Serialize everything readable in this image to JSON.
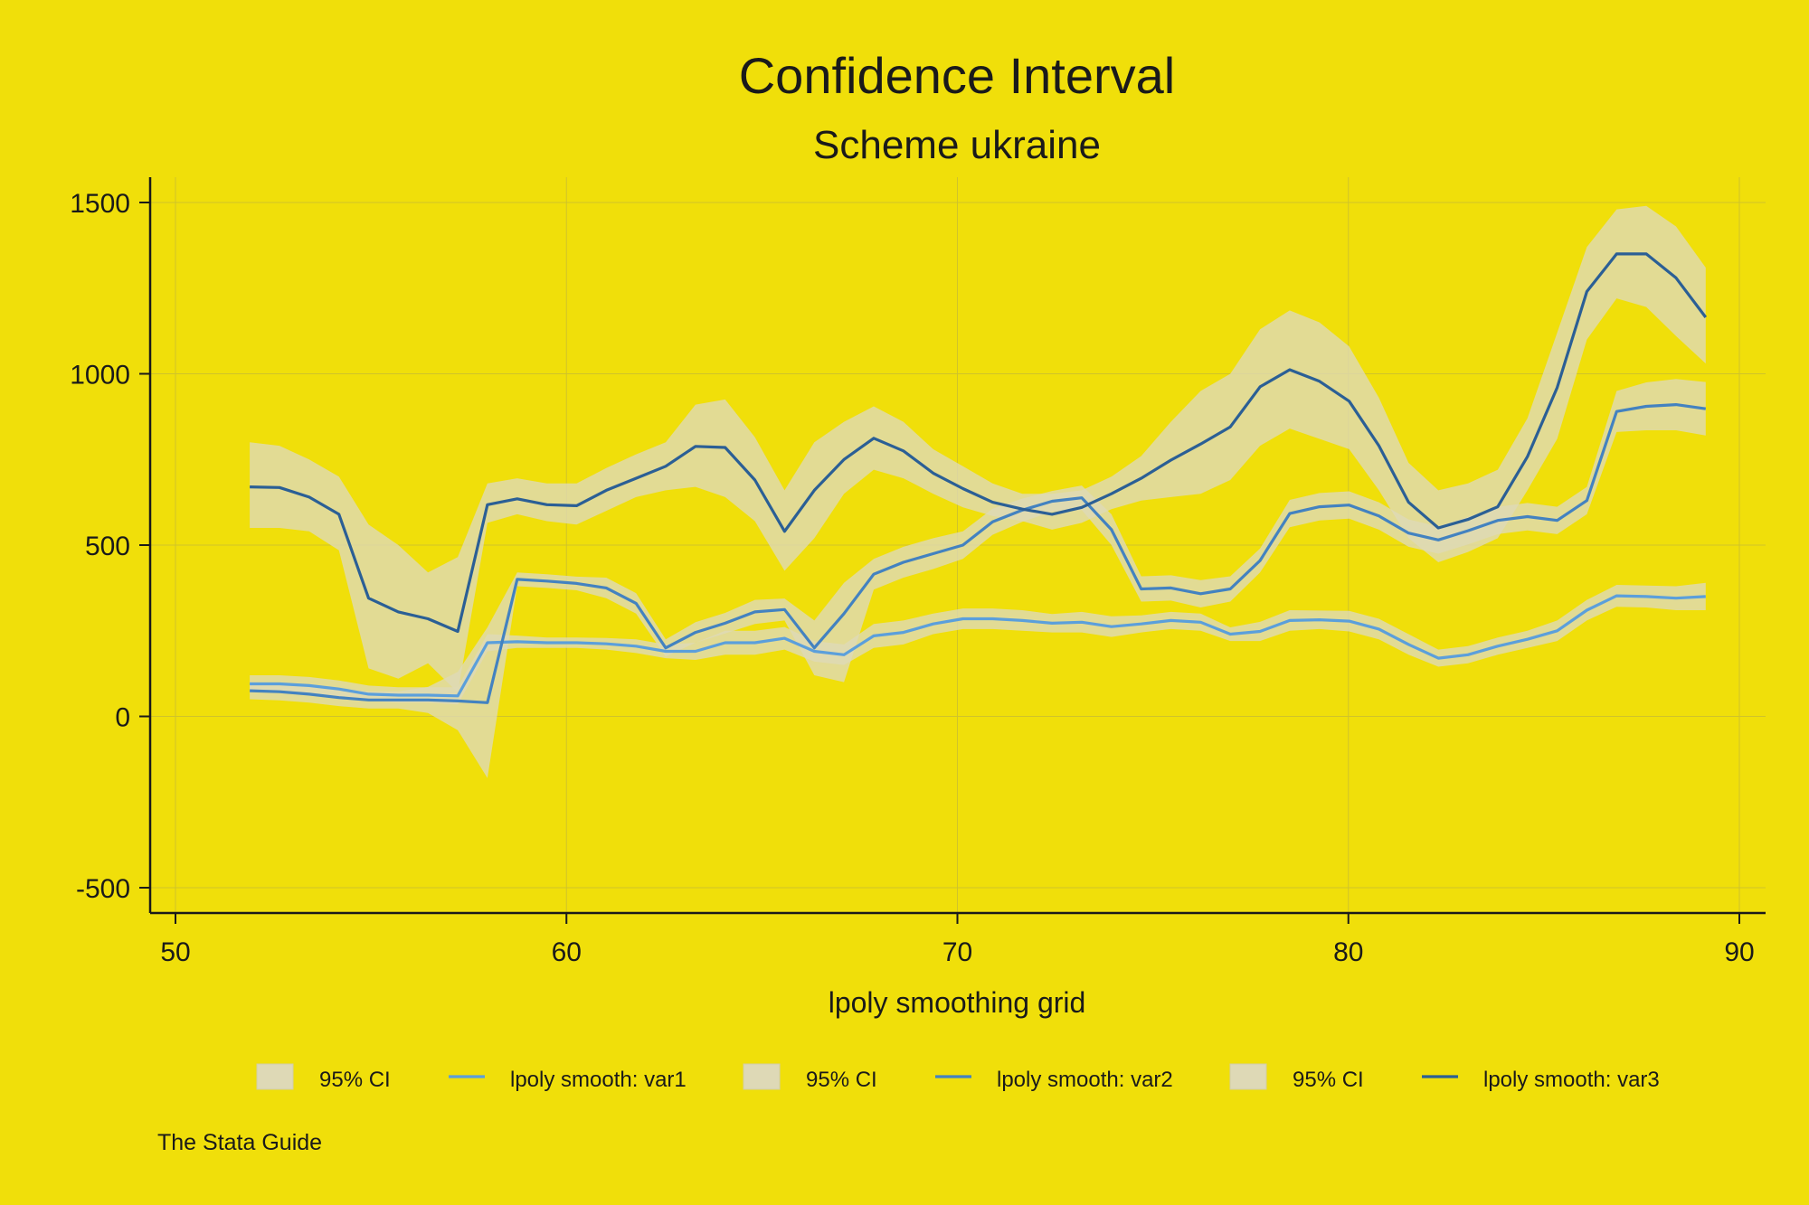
{
  "chart_data": {
    "type": "area",
    "title": "Confidence Interval",
    "subtitle": "Scheme ukraine",
    "xlabel": "lpoly smoothing grid",
    "ylabel": "",
    "xlim": [
      50,
      90
    ],
    "ylim": [
      -500,
      1500
    ],
    "xticks": [
      50,
      60,
      70,
      80,
      90
    ],
    "yticks": [
      -500,
      0,
      500,
      1000,
      1500
    ],
    "grid": true,
    "legend_placement": "bottom",
    "note": "The Stata Guide",
    "colors": {
      "background": "#f0df0a",
      "ci_band": "#ded9b6",
      "grid": "#cfc32a",
      "axis": "#1a1a1a"
    },
    "x": [
      51.9,
      52.66,
      53.42,
      54.18,
      54.94,
      55.7,
      56.46,
      57.22,
      57.98,
      58.74,
      59.5,
      60.26,
      61.02,
      61.78,
      62.54,
      63.3,
      64.06,
      64.82,
      65.58,
      66.34,
      67.1,
      67.86,
      68.62,
      69.38,
      70.14,
      70.9,
      71.66,
      72.42,
      73.18,
      73.94,
      74.7,
      75.46,
      76.22,
      76.98,
      77.74,
      78.5,
      79.26,
      80.02,
      80.78,
      81.54,
      82.3,
      83.06,
      83.82,
      84.58,
      85.34,
      86.1,
      86.86,
      87.62,
      88.38,
      89.14
    ],
    "series": [
      {
        "name": "lpoly smooth: var1",
        "color": "#5b9fdb",
        "values": [
          95,
          95,
          90,
          80,
          65,
          62,
          62,
          60,
          215,
          218,
          215,
          215,
          212,
          205,
          190,
          190,
          215,
          215,
          228,
          190,
          180,
          235,
          245,
          270,
          285,
          285,
          280,
          272,
          275,
          262,
          270,
          280,
          275,
          240,
          248,
          280,
          282,
          278,
          255,
          210,
          170,
          180,
          205,
          225,
          250,
          310,
          352,
          350,
          345,
          350
        ],
        "ci_lower": [
          70,
          70,
          65,
          55,
          45,
          40,
          40,
          35,
          190,
          200,
          200,
          200,
          195,
          185,
          170,
          165,
          180,
          180,
          195,
          160,
          150,
          200,
          210,
          240,
          255,
          255,
          250,
          245,
          245,
          232,
          245,
          255,
          250,
          220,
          220,
          250,
          255,
          248,
          225,
          180,
          145,
          155,
          180,
          200,
          220,
          280,
          320,
          318,
          310,
          310
        ],
        "ci_upper": [
          120,
          120,
          115,
          105,
          90,
          85,
          85,
          85,
          240,
          236,
          230,
          230,
          229,
          225,
          210,
          215,
          250,
          250,
          261,
          220,
          210,
          270,
          280,
          300,
          315,
          315,
          310,
          299,
          305,
          292,
          295,
          305,
          300,
          260,
          276,
          310,
          309,
          308,
          285,
          240,
          195,
          205,
          230,
          250,
          280,
          340,
          384,
          382,
          380,
          390
        ]
      },
      {
        "name": "lpoly smooth: var2",
        "color": "#4382c0",
        "values": [
          75,
          72,
          65,
          55,
          48,
          48,
          48,
          45,
          40,
          400,
          395,
          388,
          375,
          330,
          200,
          245,
          272,
          305,
          312,
          200,
          300,
          415,
          450,
          475,
          500,
          568,
          602,
          628,
          638,
          545,
          372,
          375,
          358,
          372,
          455,
          592,
          612,
          617,
          585,
          535,
          515,
          542,
          572,
          583,
          572,
          630,
          890,
          905,
          910,
          898
        ],
        "ci_lower": [
          50,
          47,
          40,
          30,
          23,
          23,
          10,
          -40,
          -180,
          380,
          375,
          368,
          345,
          300,
          175,
          215,
          242,
          270,
          280,
          120,
          100,
          370,
          405,
          430,
          460,
          530,
          568,
          598,
          602,
          500,
          335,
          338,
          318,
          335,
          420,
          552,
          572,
          577,
          545,
          495,
          475,
          502,
          532,
          543,
          532,
          590,
          830,
          835,
          835,
          820
        ],
        "ci_upper": [
          100,
          97,
          90,
          80,
          73,
          73,
          86,
          130,
          260,
          420,
          415,
          408,
          405,
          360,
          225,
          275,
          302,
          340,
          344,
          280,
          390,
          460,
          495,
          520,
          540,
          606,
          636,
          658,
          674,
          590,
          409,
          412,
          398,
          409,
          490,
          632,
          652,
          657,
          625,
          575,
          555,
          582,
          612,
          623,
          612,
          670,
          950,
          975,
          985,
          976
        ]
      },
      {
        "name": "lpoly smooth: var3",
        "color": "#2b5f95",
        "values": [
          670,
          668,
          640,
          590,
          345,
          305,
          285,
          248,
          618,
          635,
          618,
          615,
          660,
          695,
          730,
          788,
          785,
          690,
          540,
          660,
          750,
          812,
          775,
          710,
          665,
          625,
          605,
          590,
          610,
          650,
          695,
          748,
          795,
          845,
          962,
          1012,
          978,
          920,
          790,
          625,
          550,
          575,
          612,
          758,
          960,
          1240,
          1350,
          1350,
          1280,
          1165
        ],
        "ci_lower": [
          550,
          550,
          540,
          485,
          140,
          110,
          155,
          70,
          565,
          590,
          570,
          560,
          600,
          640,
          660,
          670,
          640,
          570,
          425,
          520,
          650,
          720,
          695,
          650,
          610,
          585,
          570,
          545,
          565,
          605,
          630,
          640,
          650,
          690,
          790,
          840,
          810,
          780,
          660,
          520,
          450,
          480,
          520,
          660,
          810,
          1100,
          1220,
          1195,
          1110,
          1030
        ],
        "ci_upper": [
          800,
          790,
          750,
          700,
          560,
          500,
          420,
          465,
          680,
          695,
          680,
          680,
          725,
          765,
          800,
          910,
          925,
          815,
          660,
          800,
          860,
          905,
          860,
          780,
          730,
          680,
          650,
          650,
          660,
          700,
          760,
          860,
          950,
          1000,
          1130,
          1185,
          1150,
          1080,
          930,
          740,
          660,
          680,
          720,
          870,
          1120,
          1370,
          1480,
          1490,
          1430,
          1310
        ]
      }
    ],
    "legend": [
      {
        "label": "95% CI",
        "kind": "band",
        "series": 0
      },
      {
        "label": "lpoly smooth: var1",
        "kind": "line",
        "series": 0
      },
      {
        "label": "95% CI",
        "kind": "band",
        "series": 1
      },
      {
        "label": "lpoly smooth: var2",
        "kind": "line",
        "series": 1
      },
      {
        "label": "95% CI",
        "kind": "band",
        "series": 2
      },
      {
        "label": "lpoly smooth: var3",
        "kind": "line",
        "series": 2
      }
    ]
  }
}
